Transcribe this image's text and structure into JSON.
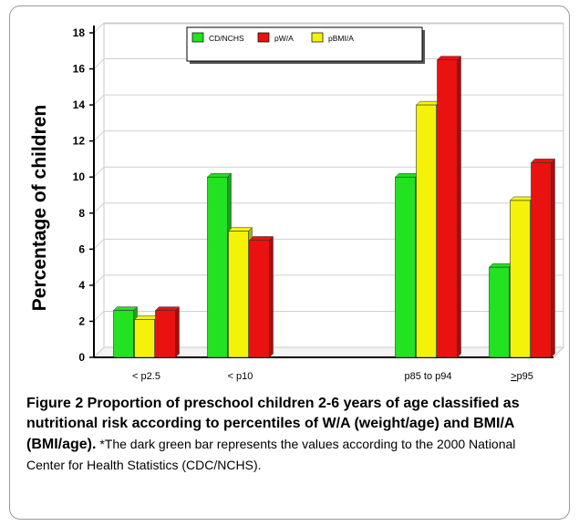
{
  "chart_data": {
    "type": "bar",
    "ylabel": "Percentage of children",
    "ylim": [
      0,
      18
    ],
    "yticks": [
      "0",
      "2",
      "4",
      "6",
      "8",
      "10",
      "12",
      "14",
      "16",
      "18"
    ],
    "categories": [
      "< p2.5",
      "< p10",
      "",
      "p85 to p94",
      ">p95"
    ],
    "series": [
      {
        "name": "CD/NCHS",
        "color": "#22e222",
        "values": [
          2.6,
          10.0,
          null,
          10.0,
          5.0
        ]
      },
      {
        "name": "pBMI/A",
        "color": "#f5f20a",
        "values": [
          2.1,
          7.0,
          null,
          14.0,
          8.7
        ]
      },
      {
        "name": "pW/A",
        "color": "#ea1111",
        "values": [
          2.6,
          6.5,
          null,
          16.5,
          10.8
        ]
      }
    ],
    "legend": {
      "position": "top",
      "entries": [
        {
          "label": "CD/NCHS",
          "color": "#22e222"
        },
        {
          "label": "pW/A",
          "color": "#ea1111"
        },
        {
          "label": "pBMI/A",
          "color": "#f5f20a"
        }
      ]
    },
    "grid": true
  },
  "caption": {
    "title": "Figure 2 Proportion of preschool children 2-6 years of age classified as nutritional risk according to percentiles of W/A (weight/age) and BMI/A (BMI/age)",
    "title_end": ".",
    "note": " *The dark green bar represents the values according to the 2000 National Center for Health Statistics (CDC/NCHS)."
  }
}
